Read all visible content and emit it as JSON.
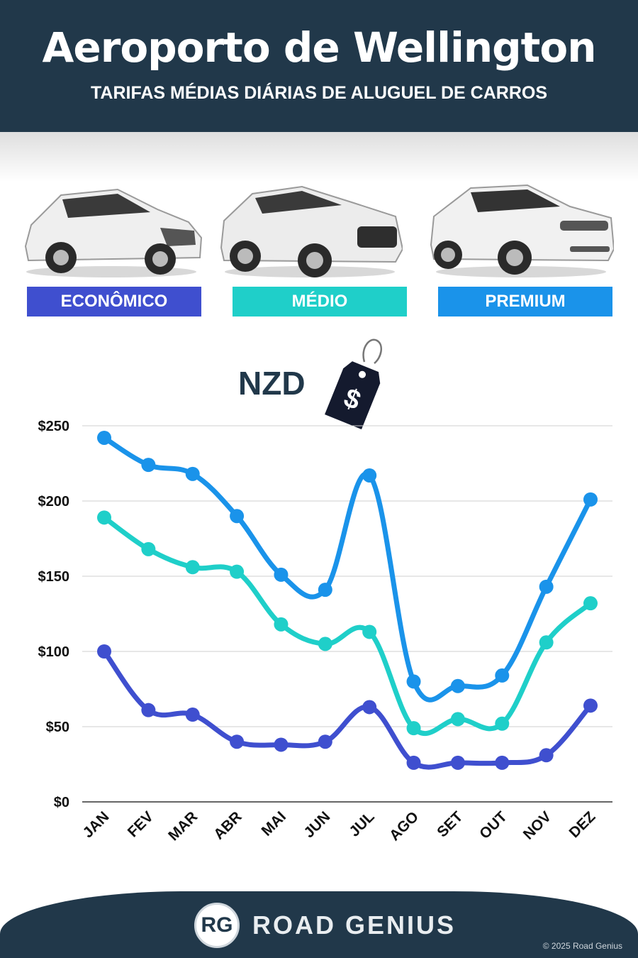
{
  "header": {
    "title": "Aeroporto de Wellington",
    "subtitle": "TARIFAS MÉDIAS DIÁRIAS DE ALUGUEL DE CARROS"
  },
  "categories": [
    {
      "label": "ECONÔMICO",
      "color": "#3f4fcf"
    },
    {
      "label": "MÉDIO",
      "color": "#1fcfc9"
    },
    {
      "label": "PREMIUM",
      "color": "#1a93ea"
    }
  ],
  "currency_badge": {
    "text": "NZD",
    "tag_symbol": "$"
  },
  "chart_data": {
    "type": "line",
    "x": [
      "JAN",
      "FEV",
      "MAR",
      "ABR",
      "MAI",
      "JUN",
      "JUL",
      "AGO",
      "SET",
      "OUT",
      "NOV",
      "DEZ"
    ],
    "yticks": [
      "$0",
      "$50",
      "$100",
      "$150",
      "$200",
      "$250"
    ],
    "ylim": [
      0,
      250
    ],
    "grid": true,
    "series": [
      {
        "name": "PREMIUM",
        "color": "#1a93ea",
        "values": [
          242,
          224,
          218,
          190,
          151,
          141,
          217,
          80,
          77,
          84,
          143,
          201
        ]
      },
      {
        "name": "MÉDIO",
        "color": "#1fcfc9",
        "values": [
          189,
          168,
          156,
          153,
          118,
          105,
          113,
          49,
          55,
          52,
          106,
          132
        ]
      },
      {
        "name": "ECONÔMICO",
        "color": "#3f4fcf",
        "values": [
          100,
          61,
          58,
          40,
          38,
          40,
          63,
          26,
          26,
          26,
          31,
          64
        ]
      }
    ]
  },
  "footer": {
    "logo_initials": "RG",
    "brand": "ROAD GENIUS",
    "copyright": "© 2025 Road Genius"
  }
}
